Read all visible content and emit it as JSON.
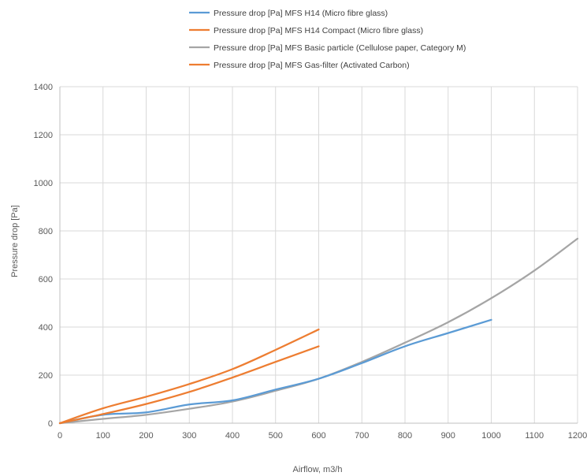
{
  "chart_data": {
    "type": "line",
    "title": "",
    "xlabel": "Airflow, m3/h",
    "ylabel": "Pressure drop [Pa]",
    "xlim": [
      0,
      1200
    ],
    "ylim": [
      0,
      1400
    ],
    "x_ticks": [
      0,
      100,
      200,
      300,
      400,
      500,
      600,
      700,
      800,
      900,
      1000,
      1100,
      1200
    ],
    "y_ticks": [
      0,
      200,
      400,
      600,
      800,
      1000,
      1200,
      1400
    ],
    "grid": true,
    "legend_position": "top",
    "series": [
      {
        "name": "Pressure drop [Pa] MFS H14 (Micro fibre glass)",
        "color": "#5B9BD5",
        "x": [
          0,
          100,
          200,
          300,
          400,
          500,
          600,
          700,
          800,
          900,
          1000
        ],
        "y": [
          0,
          35,
          45,
          78,
          95,
          140,
          185,
          250,
          320,
          375,
          430
        ]
      },
      {
        "name": "Pressure drop [Pa] MFS H14 Compact (Micro fibre glass)",
        "color": "#ED7D31",
        "x": [
          0,
          100,
          200,
          300,
          400,
          500,
          600
        ],
        "y": [
          0,
          62,
          110,
          163,
          225,
          305,
          390
        ]
      },
      {
        "name": "Pressure drop [Pa] MFS Basic particle (Cellulose paper, Category M)",
        "color": "#A5A5A5",
        "x": [
          0,
          100,
          200,
          300,
          400,
          500,
          600,
          700,
          800,
          900,
          1000,
          1100,
          1200
        ],
        "y": [
          0,
          18,
          35,
          60,
          90,
          135,
          185,
          255,
          335,
          420,
          520,
          635,
          768
        ]
      },
      {
        "name": "Pressure drop [Pa] MFS Gas-filter (Activated Carbon)",
        "color": "#ED7D31",
        "x": [
          0,
          100,
          200,
          300,
          400,
          500,
          600
        ],
        "y": [
          0,
          38,
          80,
          130,
          190,
          255,
          320
        ]
      }
    ]
  }
}
